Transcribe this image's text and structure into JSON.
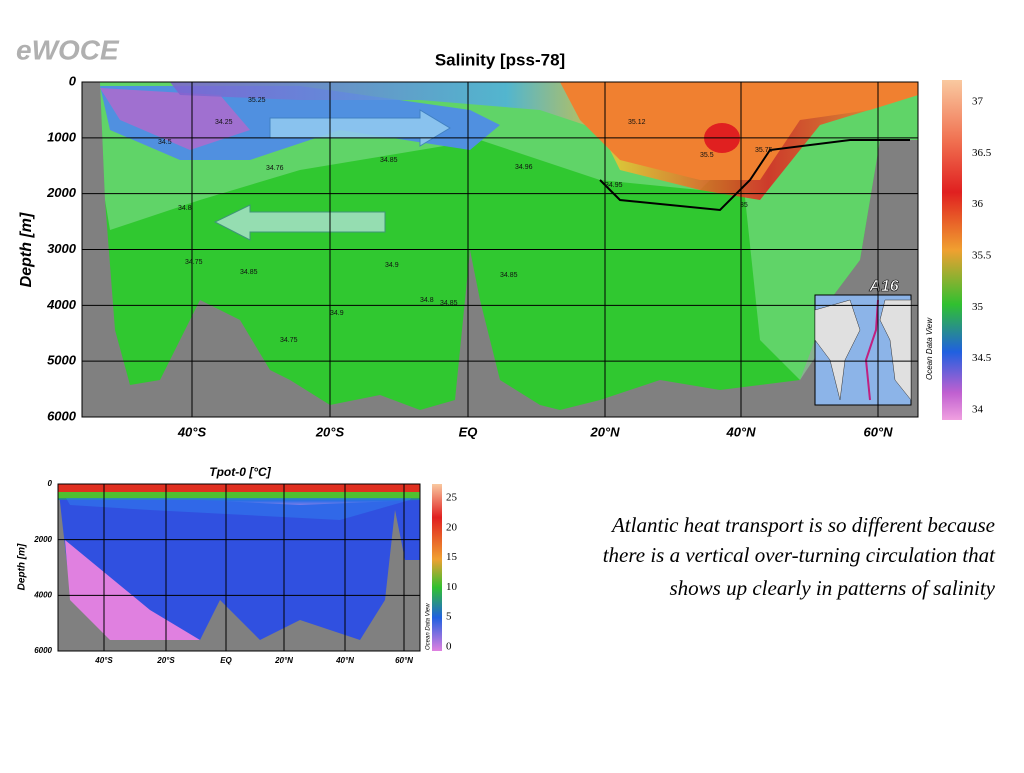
{
  "logo": "eWOCE",
  "main_plot": {
    "title": "Salinity [pss-78]",
    "y_label": "Depth [m]",
    "yticks": [
      0,
      1000,
      2000,
      3000,
      4000,
      5000,
      6000
    ],
    "xticks": [
      "40°S",
      "20°S",
      "EQ",
      "20°N",
      "40°N",
      "60°N"
    ],
    "colorbar": [
      "37",
      "36.5",
      "36",
      "35.5",
      "35",
      "34.5",
      "34"
    ],
    "inset_label": "A16",
    "credit": "Ocean Data View",
    "contour_labels": [
      "35.25",
      "34.25",
      "34.5",
      "34.76",
      "34.85",
      "34.96",
      "34.9",
      "34.85",
      "34.75",
      "34.85",
      "34.9",
      "34.8",
      "34.85",
      "34.75",
      "34.8",
      "35.5",
      "35.75",
      "35",
      "34.95",
      "35.12"
    ]
  },
  "small_plot": {
    "title": "Tpot-0 [°C]",
    "y_label": "Depth [m]",
    "yticks": [
      0,
      2000,
      4000,
      6000
    ],
    "xticks": [
      "40°S",
      "20°S",
      "EQ",
      "20°N",
      "40°N",
      "60°N"
    ],
    "colorbar": [
      "25",
      "20",
      "15",
      "10",
      "5",
      "0"
    ],
    "credit": "Ocean Data View"
  },
  "caption": [
    "Atlantic heat transport is so different because",
    "there is a vertical over-turning circulation that",
    "shows up clearly in patterns of salinity"
  ]
}
